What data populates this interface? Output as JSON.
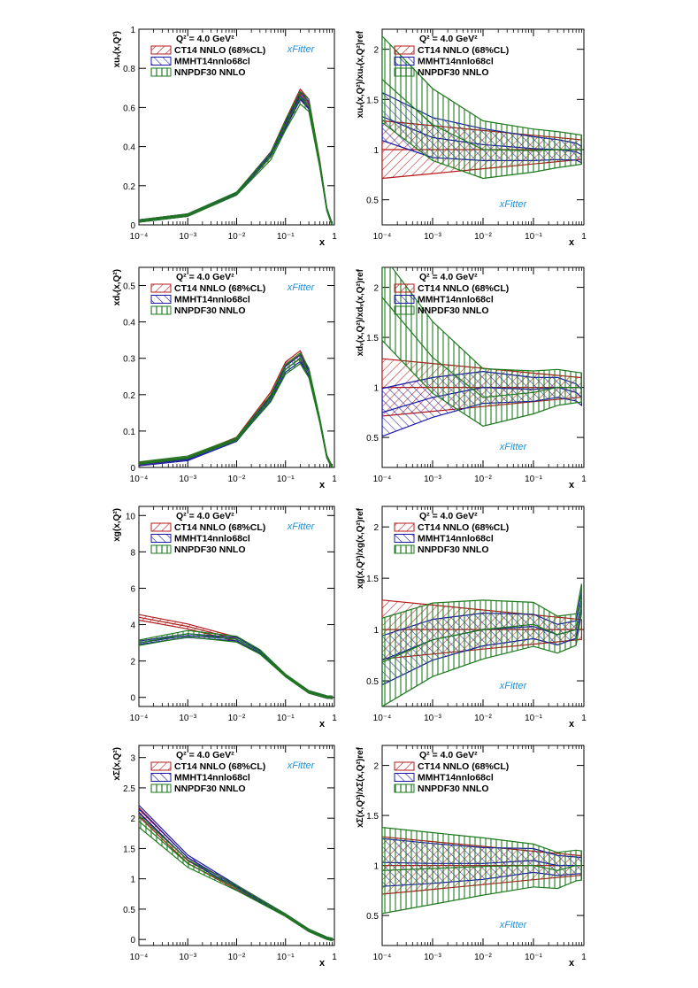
{
  "colors": {
    "ct14": "#b31b1b",
    "mmht": "#1a1aa6",
    "nnpdf": "#1e7a1e",
    "axis": "#000000",
    "logo": "#2a8fd0"
  },
  "logo_text": "xFitter",
  "legend": {
    "scale": "Q² = 4.0 GeV²",
    "entries": [
      "CT14 NNLO (68%CL)",
      "MMHT14nnlo68cl",
      "NNPDF30 NNLO"
    ]
  },
  "xaxis": {
    "label": "x",
    "ticks": [
      "10⁻⁴",
      "10⁻³",
      "10⁻²",
      "10⁻¹",
      "1"
    ]
  },
  "chart_data": [
    {
      "id": "uv",
      "type": "line",
      "kind": "absolute",
      "ylabel": "xuᵥ(x,Q²)",
      "ylim": [
        0,
        1
      ],
      "yticks": [
        "0",
        "0.2",
        "0.4",
        "0.6",
        "0.8",
        "1"
      ],
      "ytick_values": [
        0,
        0.2,
        0.4,
        0.6,
        0.8,
        1
      ],
      "x": [
        0.0001,
        0.001,
        0.01,
        0.05,
        0.1,
        0.2,
        0.3,
        0.5,
        0.7,
        0.9
      ],
      "series": [
        {
          "name": "CT14 NNLO (68%CL)",
          "values": [
            0.02,
            0.05,
            0.16,
            0.36,
            0.52,
            0.67,
            0.62,
            0.32,
            0.08,
            0.0
          ]
        },
        {
          "name": "MMHT14nnlo68cl",
          "values": [
            0.02,
            0.05,
            0.16,
            0.36,
            0.51,
            0.66,
            0.61,
            0.31,
            0.08,
            0.0
          ]
        },
        {
          "name": "NNPDF30 NNLO",
          "values": [
            0.02,
            0.05,
            0.16,
            0.35,
            0.51,
            0.65,
            0.61,
            0.31,
            0.08,
            0.0
          ]
        }
      ]
    },
    {
      "id": "uv_ratio",
      "type": "line",
      "kind": "ratio",
      "ylabel": "xuᵥ(x,Q²)/xuᵥ(x,Q²)ref",
      "ylim": [
        0.25,
        2.2
      ],
      "yticks": [
        "0.5",
        "1",
        "1.5",
        "2"
      ],
      "ytick_values": [
        0.5,
        1,
        1.5,
        2
      ],
      "x": [
        0.0001,
        0.001,
        0.01,
        0.1,
        0.3,
        0.7,
        0.9
      ],
      "series": [
        {
          "name": "CT14 NNLO (68%CL)",
          "values": [
            1.0,
            1.0,
            1.0,
            1.0,
            1.0,
            1.0,
            1.0
          ]
        },
        {
          "name": "MMHT14nnlo68cl",
          "values": [
            1.33,
            1.12,
            1.05,
            1.01,
            1.0,
            0.98,
            0.95
          ]
        },
        {
          "name": "NNPDF30 NNLO",
          "values": [
            1.7,
            1.25,
            1.0,
            0.99,
            1.0,
            1.0,
            1.0
          ]
        }
      ]
    },
    {
      "id": "dv",
      "type": "line",
      "kind": "absolute",
      "ylabel": "xdᵥ(x,Q²)",
      "ylim": [
        0,
        0.55
      ],
      "yticks": [
        "0",
        "0.1",
        "0.2",
        "0.3",
        "0.4",
        "0.5"
      ],
      "ytick_values": [
        0,
        0.1,
        0.2,
        0.3,
        0.4,
        0.5
      ],
      "x": [
        0.0001,
        0.001,
        0.01,
        0.05,
        0.1,
        0.2,
        0.3,
        0.5,
        0.7,
        0.9
      ],
      "series": [
        {
          "name": "CT14 NNLO (68%CL)",
          "values": [
            0.01,
            0.025,
            0.08,
            0.2,
            0.28,
            0.31,
            0.26,
            0.13,
            0.03,
            0.0
          ]
        },
        {
          "name": "MMHT14nnlo68cl",
          "values": [
            0.008,
            0.022,
            0.075,
            0.19,
            0.27,
            0.3,
            0.26,
            0.13,
            0.03,
            0.0
          ]
        },
        {
          "name": "NNPDF30 NNLO",
          "values": [
            0.012,
            0.028,
            0.078,
            0.19,
            0.27,
            0.3,
            0.26,
            0.13,
            0.03,
            0.0
          ]
        }
      ]
    },
    {
      "id": "dv_ratio",
      "type": "line",
      "kind": "ratio",
      "ylabel": "xdᵥ(x,Q²)/xdᵥ(x,Q²)ref",
      "ylim": [
        0.2,
        2.2
      ],
      "yticks": [
        "0.5",
        "1",
        "1.5",
        "2"
      ],
      "ytick_values": [
        0.5,
        1,
        1.5,
        2
      ],
      "x": [
        0.0001,
        0.001,
        0.01,
        0.1,
        0.3,
        0.7,
        0.9
      ],
      "series": [
        {
          "name": "CT14 NNLO (68%CL)",
          "values": [
            1.0,
            1.0,
            1.0,
            1.0,
            1.0,
            1.0,
            1.0
          ]
        },
        {
          "name": "MMHT14nnlo68cl",
          "values": [
            0.75,
            0.9,
            1.0,
            0.98,
            1.0,
            0.95,
            0.9
          ]
        },
        {
          "name": "NNPDF30 NNLO",
          "values": [
            1.9,
            1.3,
            0.9,
            0.95,
            1.0,
            1.0,
            1.0
          ]
        }
      ]
    },
    {
      "id": "g",
      "type": "line",
      "kind": "absolute",
      "ylabel": "xg(x,Q²)",
      "ylim": [
        -0.5,
        10.5
      ],
      "yticks": [
        "0",
        "2",
        "4",
        "6",
        "8",
        "10"
      ],
      "ytick_values": [
        0,
        2,
        4,
        6,
        8,
        10
      ],
      "x": [
        0.0001,
        0.001,
        0.01,
        0.03,
        0.1,
        0.3,
        0.7,
        0.9
      ],
      "series": [
        {
          "name": "CT14 NNLO (68%CL)",
          "values": [
            4.4,
            3.9,
            3.2,
            2.5,
            1.2,
            0.3,
            0.02,
            0.0
          ]
        },
        {
          "name": "MMHT14nnlo68cl",
          "values": [
            3.0,
            3.4,
            3.2,
            2.5,
            1.2,
            0.3,
            0.02,
            0.0
          ]
        },
        {
          "name": "NNPDF30 NNLO",
          "values": [
            3.0,
            3.5,
            3.2,
            2.5,
            1.2,
            0.3,
            0.02,
            0.0
          ]
        }
      ]
    },
    {
      "id": "g_ratio",
      "type": "line",
      "kind": "ratio",
      "ylabel": "xg(x,Q²)/xg(x,Q²)ref",
      "ylim": [
        0.25,
        2.2
      ],
      "yticks": [
        "0.5",
        "1",
        "1.5",
        "2"
      ],
      "ytick_values": [
        0.5,
        1,
        1.5,
        2
      ],
      "x": [
        0.0001,
        0.001,
        0.01,
        0.1,
        0.3,
        0.7,
        0.9
      ],
      "series": [
        {
          "name": "CT14 NNLO (68%CL)",
          "values": [
            1.0,
            1.0,
            1.0,
            1.0,
            1.0,
            1.0,
            1.0
          ]
        },
        {
          "name": "MMHT14nnlo68cl",
          "values": [
            0.7,
            0.9,
            1.0,
            1.03,
            0.95,
            1.0,
            1.3
          ]
        },
        {
          "name": "NNPDF30 NNLO",
          "values": [
            0.68,
            0.9,
            1.0,
            1.05,
            0.95,
            1.0,
            1.3
          ]
        }
      ]
    },
    {
      "id": "sigma",
      "type": "line",
      "kind": "absolute",
      "ylabel": "xΣ(x,Q²)",
      "ylim": [
        -0.1,
        3.2
      ],
      "yticks": [
        "0",
        "0.5",
        "1",
        "1.5",
        "2",
        "2.5",
        "3"
      ],
      "ytick_values": [
        0,
        0.5,
        1,
        1.5,
        2,
        2.5,
        3
      ],
      "x": [
        0.0001,
        0.001,
        0.01,
        0.1,
        0.3,
        0.7,
        0.9
      ],
      "series": [
        {
          "name": "CT14 NNLO (68%CL)",
          "values": [
            2.1,
            1.3,
            0.85,
            0.4,
            0.15,
            0.02,
            0.0
          ]
        },
        {
          "name": "MMHT14nnlo68cl",
          "values": [
            2.15,
            1.35,
            0.87,
            0.4,
            0.15,
            0.02,
            0.0
          ]
        },
        {
          "name": "NNPDF30 NNLO",
          "values": [
            1.95,
            1.25,
            0.85,
            0.4,
            0.15,
            0.02,
            0.0
          ]
        }
      ]
    },
    {
      "id": "sigma_ratio",
      "type": "line",
      "kind": "ratio",
      "ylabel": "xΣ(x,Q²)/xΣ(x,Q²)ref",
      "ylim": [
        0.2,
        2.2
      ],
      "yticks": [
        "0.5",
        "1",
        "1.5",
        "2"
      ],
      "ytick_values": [
        0.5,
        1,
        1.5,
        2
      ],
      "x": [
        0.0001,
        0.001,
        0.01,
        0.1,
        0.3,
        0.7,
        0.9
      ],
      "series": [
        {
          "name": "CT14 NNLO (68%CL)",
          "values": [
            1.0,
            1.0,
            1.0,
            1.0,
            1.0,
            1.0,
            1.0
          ]
        },
        {
          "name": "MMHT14nnlo68cl",
          "values": [
            1.03,
            1.02,
            1.02,
            1.05,
            1.0,
            1.0,
            1.0
          ]
        },
        {
          "name": "NNPDF30 NNLO",
          "values": [
            0.95,
            0.97,
            0.99,
            1.0,
            0.95,
            1.0,
            1.0
          ]
        }
      ]
    }
  ]
}
